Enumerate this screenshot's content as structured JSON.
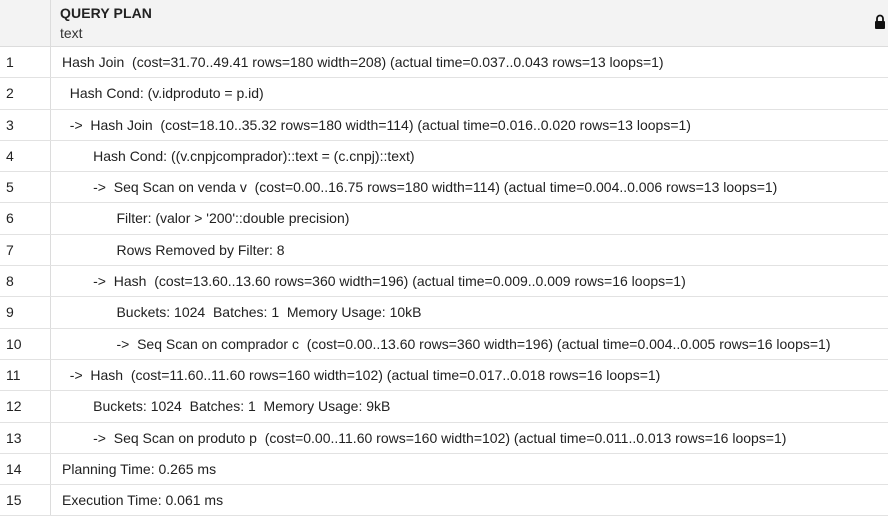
{
  "column": {
    "name": "QUERY PLAN",
    "type": "text",
    "lock_icon": "lock-icon"
  },
  "rows": [
    {
      "num": "1",
      "text": "Hash Join  (cost=31.70..49.41 rows=180 width=208) (actual time=0.037..0.043 rows=13 loops=1)"
    },
    {
      "num": "2",
      "text": "  Hash Cond: (v.idproduto = p.id)"
    },
    {
      "num": "3",
      "text": "  ->  Hash Join  (cost=18.10..35.32 rows=180 width=114) (actual time=0.016..0.020 rows=13 loops=1)"
    },
    {
      "num": "4",
      "text": "        Hash Cond: ((v.cnpjcomprador)::text = (c.cnpj)::text)"
    },
    {
      "num": "5",
      "text": "        ->  Seq Scan on venda v  (cost=0.00..16.75 rows=180 width=114) (actual time=0.004..0.006 rows=13 loops=1)"
    },
    {
      "num": "6",
      "text": "              Filter: (valor > '200'::double precision)"
    },
    {
      "num": "7",
      "text": "              Rows Removed by Filter: 8"
    },
    {
      "num": "8",
      "text": "        ->  Hash  (cost=13.60..13.60 rows=360 width=196) (actual time=0.009..0.009 rows=16 loops=1)"
    },
    {
      "num": "9",
      "text": "              Buckets: 1024  Batches: 1  Memory Usage: 10kB"
    },
    {
      "num": "10",
      "text": "              ->  Seq Scan on comprador c  (cost=0.00..13.60 rows=360 width=196) (actual time=0.004..0.005 rows=16 loops=1)"
    },
    {
      "num": "11",
      "text": "  ->  Hash  (cost=11.60..11.60 rows=160 width=102) (actual time=0.017..0.018 rows=16 loops=1)"
    },
    {
      "num": "12",
      "text": "        Buckets: 1024  Batches: 1  Memory Usage: 9kB"
    },
    {
      "num": "13",
      "text": "        ->  Seq Scan on produto p  (cost=0.00..11.60 rows=160 width=102) (actual time=0.011..0.013 rows=16 loops=1)"
    },
    {
      "num": "14",
      "text": "Planning Time: 0.265 ms"
    },
    {
      "num": "15",
      "text": "Execution Time: 0.061 ms"
    }
  ]
}
